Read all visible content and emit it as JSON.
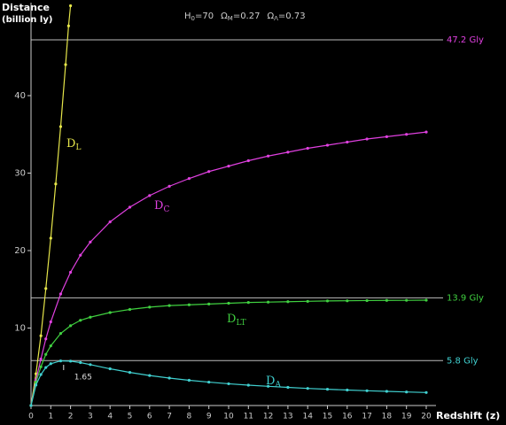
{
  "chart_data": {
    "type": "line",
    "title": [
      {
        "main": "H",
        "sub": "0",
        "rest": "=70"
      },
      {
        "main": "Ω",
        "sub": "M",
        "rest": "=0.27"
      },
      {
        "main": "Ω",
        "sub": "Λ",
        "rest": "=0.73"
      }
    ],
    "y_label": [
      "Distance",
      "(billion ly)"
    ],
    "x_label": "Redshift (z)",
    "xlim": [
      0,
      21
    ],
    "ylim": [
      0,
      52
    ],
    "xticks": [
      0,
      1,
      2,
      3,
      4,
      5,
      6,
      7,
      8,
      9,
      10,
      11,
      12,
      13,
      14,
      15,
      16,
      17,
      18,
      19,
      20
    ],
    "yticks": [
      10,
      20,
      30,
      40
    ],
    "series": [
      {
        "label": [
          "D",
          "L"
        ],
        "color": "#e6e64a",
        "x": [
          0,
          0.25,
          0.5,
          0.75,
          1,
          1.25,
          1.5,
          1.75,
          1.9,
          2
        ],
        "values": [
          0,
          4.1,
          9.0,
          15.1,
          21.6,
          28.6,
          36,
          44,
          49,
          51.6
        ]
      },
      {
        "label": [
          "D",
          "C"
        ],
        "color": "#e040e0",
        "x": [
          0,
          0.25,
          0.5,
          0.75,
          1,
          1.5,
          2,
          2.5,
          3,
          4,
          5,
          6,
          7,
          8,
          9,
          10,
          11,
          12,
          13,
          14,
          15,
          16,
          17,
          18,
          19,
          20
        ],
        "values": [
          0,
          3.3,
          6.0,
          8.6,
          10.8,
          14.4,
          17.2,
          19.4,
          21.1,
          23.7,
          25.6,
          27.1,
          28.3,
          29.3,
          30.2,
          30.9,
          31.6,
          32.2,
          32.7,
          33.2,
          33.6,
          34.0,
          34.4,
          34.7,
          35.0,
          35.3
        ]
      },
      {
        "label": [
          "D",
          "LT"
        ],
        "color": "#40d040",
        "x": [
          0,
          0.25,
          0.5,
          0.75,
          1,
          1.5,
          2,
          2.5,
          3,
          4,
          5,
          6,
          7,
          8,
          9,
          10,
          11,
          12,
          13,
          14,
          15,
          16,
          17,
          18,
          19,
          20
        ],
        "values": [
          0,
          3.0,
          5.0,
          6.6,
          7.7,
          9.3,
          10.3,
          11.0,
          11.4,
          12.0,
          12.4,
          12.7,
          12.9,
          13.0,
          13.1,
          13.2,
          13.3,
          13.35,
          13.4,
          13.45,
          13.5,
          13.52,
          13.55,
          13.57,
          13.58,
          13.6
        ]
      },
      {
        "label": [
          "D",
          "A"
        ],
        "color": "#40d0d0",
        "x": [
          0,
          0.25,
          0.5,
          0.75,
          1,
          1.5,
          2,
          2.5,
          3,
          4,
          5,
          6,
          7,
          8,
          9,
          10,
          11,
          12,
          13,
          14,
          15,
          16,
          17,
          18,
          19,
          20
        ],
        "values": [
          0,
          2.64,
          4.0,
          4.91,
          5.4,
          5.76,
          5.73,
          5.54,
          5.28,
          4.74,
          4.27,
          3.87,
          3.54,
          3.26,
          3.02,
          2.81,
          2.63,
          2.48,
          2.34,
          2.21,
          2.1,
          2.0,
          1.91,
          1.83,
          1.75,
          1.68
        ]
      }
    ],
    "hlines": [
      {
        "value": 47.2,
        "label": "47.2 Gly",
        "color": "#e040e0"
      },
      {
        "value": 13.9,
        "label": "13.9 Gly",
        "color": "#40d040"
      },
      {
        "value": 5.8,
        "label": "5.8 Gly",
        "color": "#40d0d0"
      }
    ],
    "peak_x": 1.65
  }
}
